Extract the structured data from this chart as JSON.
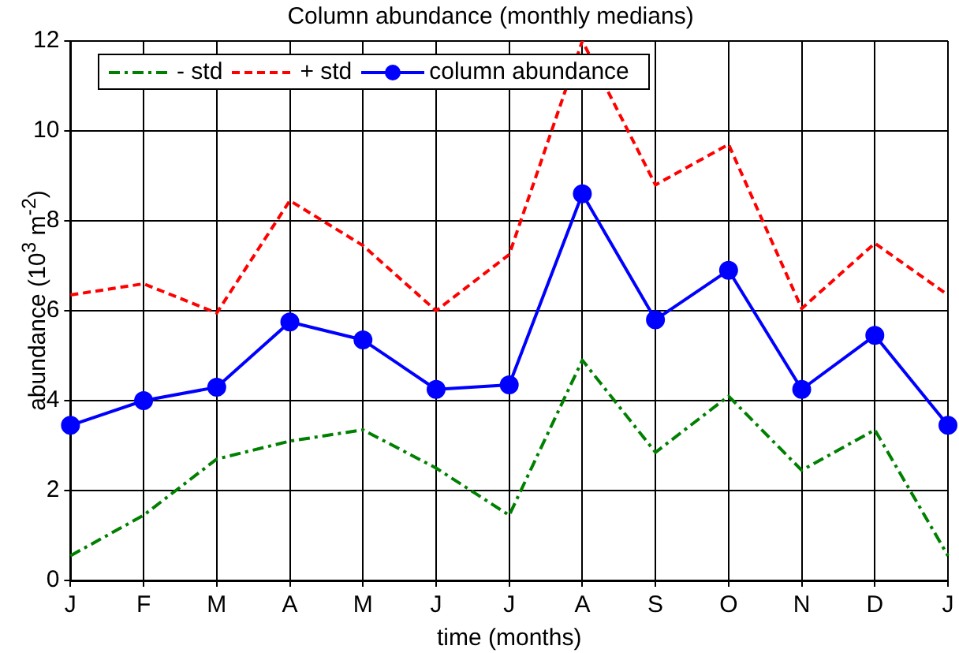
{
  "chart_data": {
    "type": "line",
    "title": "Column abundance (monthly medians)",
    "xlabel": "time (months)",
    "ylabel": "abundance (10$^{3}$ m$^{-2}$)",
    "categories": [
      "J",
      "F",
      "M",
      "A",
      "M",
      "J",
      "J",
      "A",
      "S",
      "O",
      "N",
      "D",
      "J"
    ],
    "series": [
      {
        "name": "- std",
        "color": "#008000",
        "line_style": "dotted",
        "marker": "none",
        "values": [
          0.55,
          1.45,
          2.7,
          3.1,
          3.35,
          2.5,
          1.45,
          4.9,
          2.85,
          4.1,
          2.45,
          3.35,
          0.55
        ]
      },
      {
        "name": "+ std",
        "color": "#ff0000",
        "line_style": "dashed",
        "marker": "none",
        "values": [
          6.35,
          6.6,
          5.95,
          8.45,
          7.45,
          6.0,
          7.25,
          12.0,
          8.8,
          9.7,
          6.05,
          7.5,
          6.35
        ]
      },
      {
        "name": "column abundance",
        "color": "#0000ff",
        "line_style": "solid",
        "marker": "circle",
        "values": [
          3.45,
          4.0,
          4.3,
          5.75,
          5.35,
          4.25,
          4.35,
          8.6,
          5.8,
          6.9,
          4.25,
          5.45,
          3.45
        ]
      }
    ],
    "ylim": [
      0,
      12
    ],
    "yticks": [
      0,
      2,
      4,
      6,
      8,
      10,
      12
    ],
    "grid": true,
    "legend": "top left"
  }
}
